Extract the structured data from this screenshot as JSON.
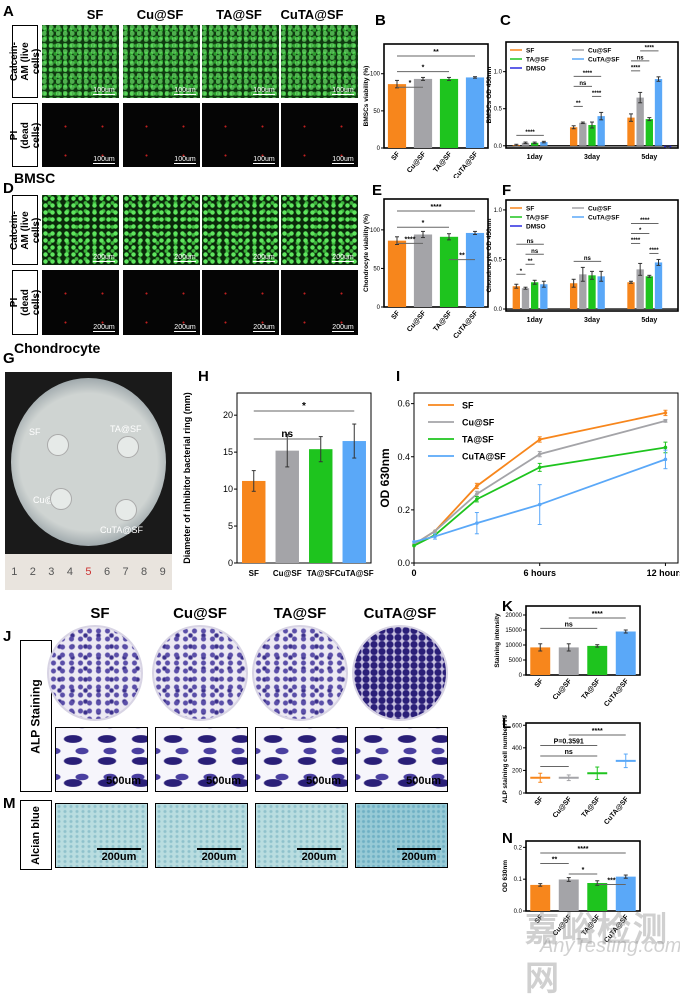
{
  "panels": {
    "A": "A",
    "B": "B",
    "C": "C",
    "D": "D",
    "E": "E",
    "F": "F",
    "G": "G",
    "H": "H",
    "I": "I",
    "J": "J",
    "K": "K",
    "L": "L",
    "M": "M",
    "N": "N"
  },
  "groups": [
    "SF",
    "Cu@SF",
    "TA@SF",
    "CuTA@SF"
  ],
  "row_labels": {
    "calcein": "Calcein-AM (live cells)",
    "pi": "PI (dead cells)",
    "alp": "ALP Staining",
    "alcian": "Alcian blue"
  },
  "cell_types": {
    "bmsc": "BMSC",
    "chondrocyte": "Chondrocyte"
  },
  "scale_bars": {
    "a": "100um",
    "d": "200um",
    "j": "500um",
    "m": "200um"
  },
  "dish": {
    "labels": [
      "SF",
      "TA@SF",
      "Cu@SF",
      "CuTA@SF"
    ],
    "ruler": [
      "1",
      "2",
      "3",
      "4",
      "5",
      "6",
      "7",
      "8",
      "9"
    ]
  },
  "watermark": {
    "cn": "嘉峪检测网",
    "en": "AnyTesting.com"
  },
  "colors": {
    "SF": "#f7861c",
    "Cu@SF": "#a4a4a8",
    "TA@SF": "#1ec41e",
    "CuTA@SF": "#5aa8f8",
    "DMSO": "#2a2ae0"
  },
  "chart_data": [
    {
      "panel": "B",
      "type": "bar",
      "categories": [
        "SF",
        "Cu@SF",
        "TA@SF",
        "CuTA@SF"
      ],
      "values": [
        86,
        93,
        93,
        95
      ],
      "errors": [
        5,
        2,
        2,
        1
      ],
      "ylabel": "BMSCs viability (%)",
      "ylim": [
        0,
        140
      ],
      "yticks": [
        "0",
        "50",
        "100"
      ],
      "annotations": [
        [
          0,
          3,
          "**"
        ],
        [
          0,
          2,
          "*"
        ],
        [
          0,
          1,
          "*"
        ]
      ]
    },
    {
      "panel": "C",
      "type": "grouped-bar",
      "groups": [
        "1day",
        "3day",
        "5day"
      ],
      "series": [
        {
          "name": "SF",
          "values": [
            0.01,
            0.25,
            0.38
          ],
          "errors": [
            0.01,
            0.02,
            0.05
          ]
        },
        {
          "name": "Cu@SF",
          "values": [
            0.04,
            0.31,
            0.65
          ],
          "errors": [
            0.01,
            0.01,
            0.07
          ]
        },
        {
          "name": "TA@SF",
          "values": [
            0.04,
            0.28,
            0.36
          ],
          "errors": [
            0.01,
            0.04,
            0.02
          ]
        },
        {
          "name": "CuTA@SF",
          "values": [
            0.05,
            0.4,
            0.9
          ],
          "errors": [
            0.01,
            0.05,
            0.03
          ]
        },
        {
          "name": "DMSO",
          "values": [
            0,
            0,
            -0.02
          ],
          "errors": [
            0,
            0,
            0.01
          ]
        }
      ],
      "ylabel": "BMSCs OD 450nm",
      "ylim": [
        -0.03,
        1.4
      ],
      "yticks": [
        "0.0",
        "0.5",
        "1.0"
      ],
      "annotations": [
        [
          0,
          0,
          3,
          "****"
        ],
        [
          1,
          0,
          3,
          "****"
        ],
        [
          1,
          0,
          2,
          "ns"
        ],
        [
          1,
          2,
          3,
          "****"
        ],
        [
          1,
          0,
          1,
          "**"
        ],
        [
          2,
          1,
          3,
          "****"
        ],
        [
          2,
          0,
          2,
          "ns"
        ],
        [
          2,
          0,
          1,
          "****"
        ]
      ]
    },
    {
      "panel": "E",
      "type": "bar",
      "categories": [
        "SF",
        "Cu@SF",
        "TA@SF",
        "CuTA@SF"
      ],
      "values": [
        86,
        94,
        91,
        96
      ],
      "errors": [
        5,
        4,
        4,
        2
      ],
      "ylabel": "Chondrocyte viability (%)",
      "ylim": [
        0,
        140
      ],
      "yticks": [
        "0",
        "50",
        "100"
      ],
      "annotations": [
        [
          0,
          3,
          "****"
        ],
        [
          0,
          2,
          "*"
        ],
        [
          0,
          1,
          "****"
        ],
        [
          2,
          3,
          "**"
        ]
      ]
    },
    {
      "panel": "F",
      "type": "grouped-bar",
      "groups": [
        "1day",
        "3day",
        "5day"
      ],
      "series": [
        {
          "name": "SF",
          "values": [
            0.23,
            0.26,
            0.27
          ],
          "errors": [
            0.02,
            0.04,
            0.01
          ]
        },
        {
          "name": "Cu@SF",
          "values": [
            0.21,
            0.35,
            0.4
          ],
          "errors": [
            0.01,
            0.07,
            0.06
          ]
        },
        {
          "name": "TA@SF",
          "values": [
            0.27,
            0.34,
            0.33
          ],
          "errors": [
            0.02,
            0.04,
            0.01
          ]
        },
        {
          "name": "CuTA@SF",
          "values": [
            0.25,
            0.33,
            0.47
          ],
          "errors": [
            0.03,
            0.05,
            0.03
          ]
        },
        {
          "name": "DMSO",
          "values": [
            0,
            0,
            0
          ],
          "errors": [
            0,
            0,
            0
          ]
        }
      ],
      "ylabel": "Chondrocyte OD 450nm",
      "ylim": [
        -0.02,
        1.1
      ],
      "yticks": [
        "0.0",
        "0.5",
        "1.0"
      ],
      "annotations": [
        [
          0,
          0,
          3,
          "ns"
        ],
        [
          0,
          1,
          3,
          "ns"
        ],
        [
          0,
          1,
          2,
          "**"
        ],
        [
          0,
          0,
          1,
          "*"
        ],
        [
          1,
          0,
          3,
          "ns"
        ],
        [
          2,
          0,
          3,
          "****"
        ],
        [
          2,
          0,
          2,
          "*"
        ],
        [
          2,
          0,
          1,
          "****"
        ],
        [
          2,
          2,
          3,
          "****"
        ]
      ]
    },
    {
      "panel": "H",
      "type": "bar",
      "categories": [
        "SF",
        "Cu@SF",
        "TA@SF",
        "CuTA@SF"
      ],
      "values": [
        11.1,
        15.2,
        15.4,
        16.5
      ],
      "errors": [
        1.4,
        2.2,
        1.7,
        2.3
      ],
      "ylabel": "Diameter of inhibitor bacterial ring (mm)",
      "ylim": [
        0,
        23
      ],
      "yticks": [
        "0",
        "5",
        "10",
        "15",
        "20"
      ],
      "annotations": [
        [
          0,
          3,
          "*"
        ],
        [
          0,
          2,
          "ns"
        ]
      ]
    },
    {
      "panel": "I",
      "type": "line",
      "x": [
        0,
        1,
        3,
        6,
        12
      ],
      "xlim": [
        0,
        12.6
      ],
      "xticks": [
        [
          "0",
          0
        ],
        [
          "6 hours",
          6
        ],
        [
          "12 hours",
          12
        ]
      ],
      "series": [
        {
          "name": "SF",
          "values": [
            0.07,
            0.12,
            0.29,
            0.465,
            0.565
          ],
          "errors": [
            0,
            0,
            0.01,
            0.01,
            0.01
          ]
        },
        {
          "name": "Cu@SF",
          "values": [
            0.07,
            0.12,
            0.26,
            0.41,
            0.535
          ],
          "errors": [
            0,
            0,
            0.01,
            0.01,
            0.005
          ]
        },
        {
          "name": "TA@SF",
          "values": [
            0.065,
            0.105,
            0.24,
            0.36,
            0.435
          ],
          "errors": [
            0,
            0,
            0.01,
            0.015,
            0.02
          ]
        },
        {
          "name": "CuTA@SF",
          "values": [
            0.08,
            0.1,
            0.15,
            0.22,
            0.39
          ],
          "errors": [
            0,
            0.01,
            0.04,
            0.075,
            0.035
          ]
        }
      ],
      "ylabel": "OD 630nm",
      "ylim": [
        0,
        0.64
      ],
      "yticks": [
        "0.0",
        "0.2",
        "0.4",
        "0.6"
      ]
    },
    {
      "panel": "K",
      "type": "bar",
      "categories": [
        "SF",
        "Cu@SF",
        "TA@SF",
        "CuTA@SF"
      ],
      "values": [
        9200,
        9200,
        9700,
        14500
      ],
      "errors": [
        1200,
        1200,
        400,
        500
      ],
      "ylabel": "Staining intensity",
      "ylim": [
        0,
        23000
      ],
      "yticks": [
        "0",
        "5000",
        "10000",
        "15000",
        "20000"
      ],
      "annotations": [
        [
          1,
          3,
          "****"
        ],
        [
          0,
          2,
          "ns"
        ]
      ]
    },
    {
      "panel": "L",
      "type": "scatter",
      "categories": [
        "SF",
        "Cu@SF",
        "TA@SF",
        "CuTA@SF"
      ],
      "values": [
        135,
        135,
        175,
        285
      ],
      "errors": [
        40,
        25,
        55,
        60
      ],
      "ylabel": "ALP staining cell number/ HP",
      "ylim": [
        0,
        620
      ],
      "yticks": [
        "0",
        "200",
        "400",
        "600"
      ],
      "annotations": [
        [
          1,
          3,
          "****"
        ],
        [
          0,
          2,
          "P=0.3591"
        ],
        [
          0,
          2,
          "ns"
        ],
        [
          0,
          1,
          ""
        ]
      ]
    },
    {
      "panel": "N",
      "type": "bar",
      "categories": [
        "SF",
        "Cu@SF",
        "TA@SF",
        "CuTA@SF"
      ],
      "values": [
        0.082,
        0.099,
        0.088,
        0.108
      ],
      "errors": [
        0.004,
        0.006,
        0.007,
        0.005
      ],
      "ylabel": "OD 630nm",
      "ylim": [
        0,
        0.22
      ],
      "yticks": [
        "0.0",
        "0.1",
        "0.2"
      ],
      "annotations": [
        [
          0,
          3,
          "****"
        ],
        [
          0,
          1,
          "**"
        ],
        [
          1,
          2,
          "*"
        ],
        [
          2,
          3,
          "***"
        ]
      ]
    }
  ]
}
